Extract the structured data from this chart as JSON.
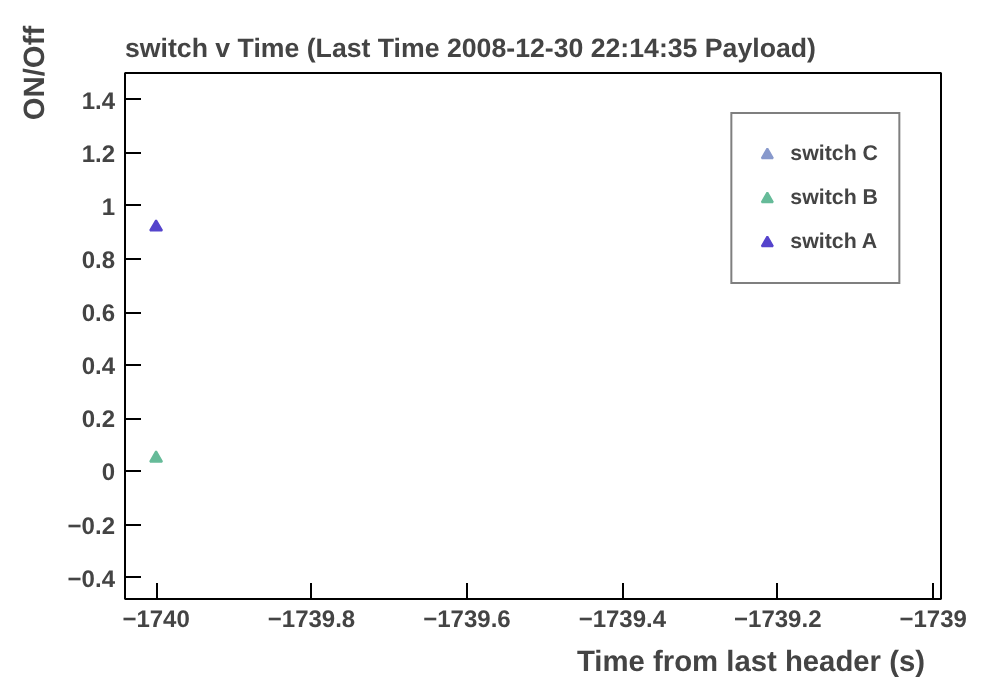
{
  "chart_data": {
    "type": "scatter",
    "title": "switch v Time (Last Time 2008-12-30 22:14:35 Payload)",
    "xlabel": "Time from last header (s)",
    "ylabel": "ON/Off",
    "x": [
      -1740
    ],
    "series": [
      {
        "name": "switch C",
        "color": "#8899cc",
        "values": [
          null
        ]
      },
      {
        "name": "switch B",
        "color": "#66bb99",
        "values": [
          0.05
        ]
      },
      {
        "name": "switch A",
        "color": "#5544cc",
        "values": [
          0.92
        ]
      }
    ],
    "xlim": [
      -1740.04,
      -1738.99
    ],
    "xticks": [
      -1740,
      -1739.8,
      -1739.6,
      -1739.4,
      -1739.2,
      -1739
    ],
    "ylim": [
      -0.48,
      1.5
    ],
    "yticks": [
      -0.4,
      -0.2,
      0,
      0.2,
      0.4,
      0.6,
      0.8,
      1,
      1.2,
      1.4
    ],
    "marker": "triangle",
    "legend": "top right",
    "grid": false
  }
}
